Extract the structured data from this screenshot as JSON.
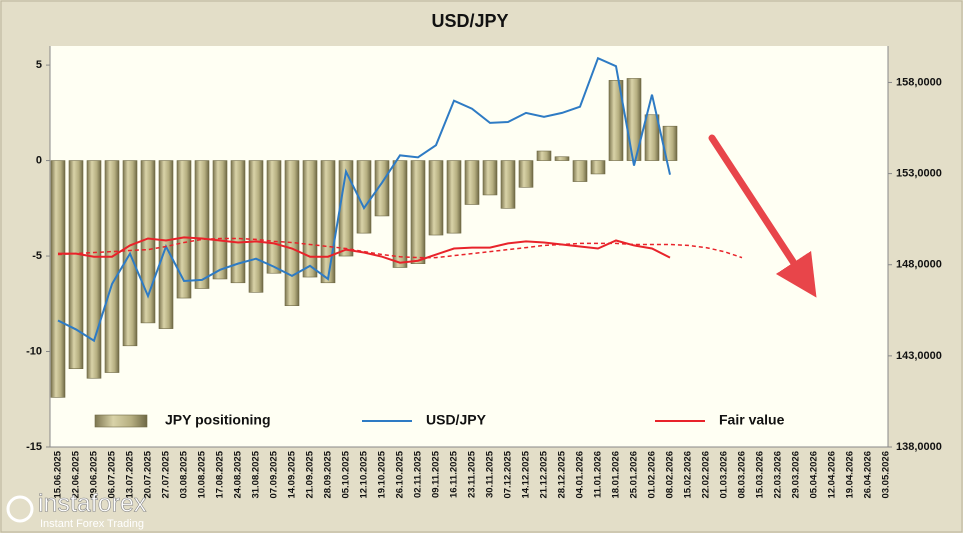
{
  "chart_data": {
    "type": "combo",
    "title": "USD/JPY",
    "categories": [
      "15.06.2025",
      "22.06.2025",
      "29.06.2025",
      "06.07.2025",
      "13.07.2025",
      "20.07.2025",
      "27.07.2025",
      "03.08.2025",
      "10.08.2025",
      "17.08.2025",
      "24.08.2025",
      "31.08.2025",
      "07.09.2025",
      "14.09.2025",
      "21.09.2025",
      "28.09.2025",
      "05.10.2025",
      "12.10.2025",
      "19.10.2025",
      "26.10.2025",
      "02.11.2025",
      "09.11.2025",
      "16.11.2025",
      "23.11.2025",
      "30.11.2025",
      "07.12.2025",
      "14.12.2025",
      "21.12.2025",
      "28.12.2025",
      "04.01.2026",
      "11.01.2026",
      "18.01.2026",
      "25.01.2026",
      "01.02.2026",
      "08.02.2026",
      "15.02.2026",
      "22.02.2026",
      "01.03.2026",
      "08.03.2026",
      "15.03.2026",
      "22.03.2026",
      "29.03.2026",
      "05.04.2026",
      "12.04.2026",
      "19.04.2026",
      "26.04.2026",
      "03.05.2026"
    ],
    "series": [
      {
        "name": "JPY positioning",
        "kind": "bar",
        "color": "#b5ae80",
        "values": [
          -12.4,
          -10.9,
          -11.4,
          -11.1,
          -9.7,
          -8.5,
          -8.8,
          -7.2,
          -6.7,
          -6.2,
          -6.4,
          -6.9,
          -5.9,
          -7.6,
          -6.1,
          -6.4,
          -5.0,
          -3.8,
          -2.9,
          -5.6,
          -5.4,
          -3.9,
          -3.8,
          -2.3,
          -1.8,
          -2.5,
          -1.4,
          0.5,
          0.2,
          -1.1,
          -0.7,
          4.2,
          4.3,
          2.4,
          1.8,
          null,
          null,
          null,
          null,
          null,
          null,
          null,
          null,
          null,
          null,
          null,
          null
        ]
      },
      {
        "name": "USD/JPY",
        "kind": "line",
        "axis": "y2",
        "color": "#2e7bc4",
        "values": [
          144940,
          144450,
          143830,
          146940,
          148610,
          146280,
          149000,
          147110,
          147170,
          147720,
          148060,
          148330,
          147890,
          147390,
          147940,
          147220,
          153110,
          151110,
          152500,
          154000,
          153890,
          154560,
          157000,
          156560,
          155780,
          155830,
          156330,
          156110,
          156330,
          156670,
          159330,
          158890,
          153440,
          157330,
          152940,
          null,
          null,
          null,
          null,
          null,
          null,
          null,
          null,
          null,
          null,
          null,
          null
        ]
      },
      {
        "name": "Fair value",
        "kind": "line",
        "axis": "y2",
        "color": "#e8232a",
        "values": [
          148610,
          148610,
          148440,
          148440,
          149060,
          149440,
          149330,
          149500,
          149440,
          149330,
          149220,
          149280,
          149170,
          148890,
          148440,
          148440,
          148830,
          148670,
          148440,
          148110,
          148220,
          148560,
          148890,
          148940,
          148940,
          149170,
          149280,
          149220,
          149110,
          149000,
          148890,
          149330,
          149060,
          148890,
          148390,
          null,
          null,
          null,
          null,
          null,
          null,
          null,
          null,
          null,
          null,
          null,
          null
        ]
      },
      {
        "kind": "line",
        "axis": "y2",
        "color": "#e8232a",
        "dashed": true,
        "values": [
          148560,
          148610,
          148670,
          148720,
          148780,
          148830,
          149000,
          149220,
          149390,
          149440,
          149440,
          149390,
          149280,
          149220,
          149110,
          149000,
          148890,
          148720,
          148560,
          148440,
          148390,
          148390,
          148500,
          148610,
          148720,
          148830,
          148940,
          149060,
          149110,
          149170,
          149170,
          149170,
          149110,
          149110,
          149110,
          149060,
          148940,
          148720,
          148390,
          null,
          null,
          null,
          null,
          null,
          null,
          null,
          null
        ]
      }
    ],
    "ylim": [
      -15,
      6
    ],
    "yticks": [
      -15,
      -10,
      -5,
      0,
      5
    ],
    "y2lim": [
      138000,
      160000
    ],
    "y2ticks": [
      {
        "value": 138000,
        "label": "138,0000"
      },
      {
        "value": 143000,
        "label": "143,0000"
      },
      {
        "value": 148000,
        "label": "148,0000"
      },
      {
        "value": 153000,
        "label": "153,0000"
      },
      {
        "value": 158000,
        "label": "158,0000"
      }
    ],
    "legend": "bottom",
    "grid": false
  },
  "watermark": {
    "brand": "instaforex",
    "tagline": "Instant Forex Trading"
  }
}
